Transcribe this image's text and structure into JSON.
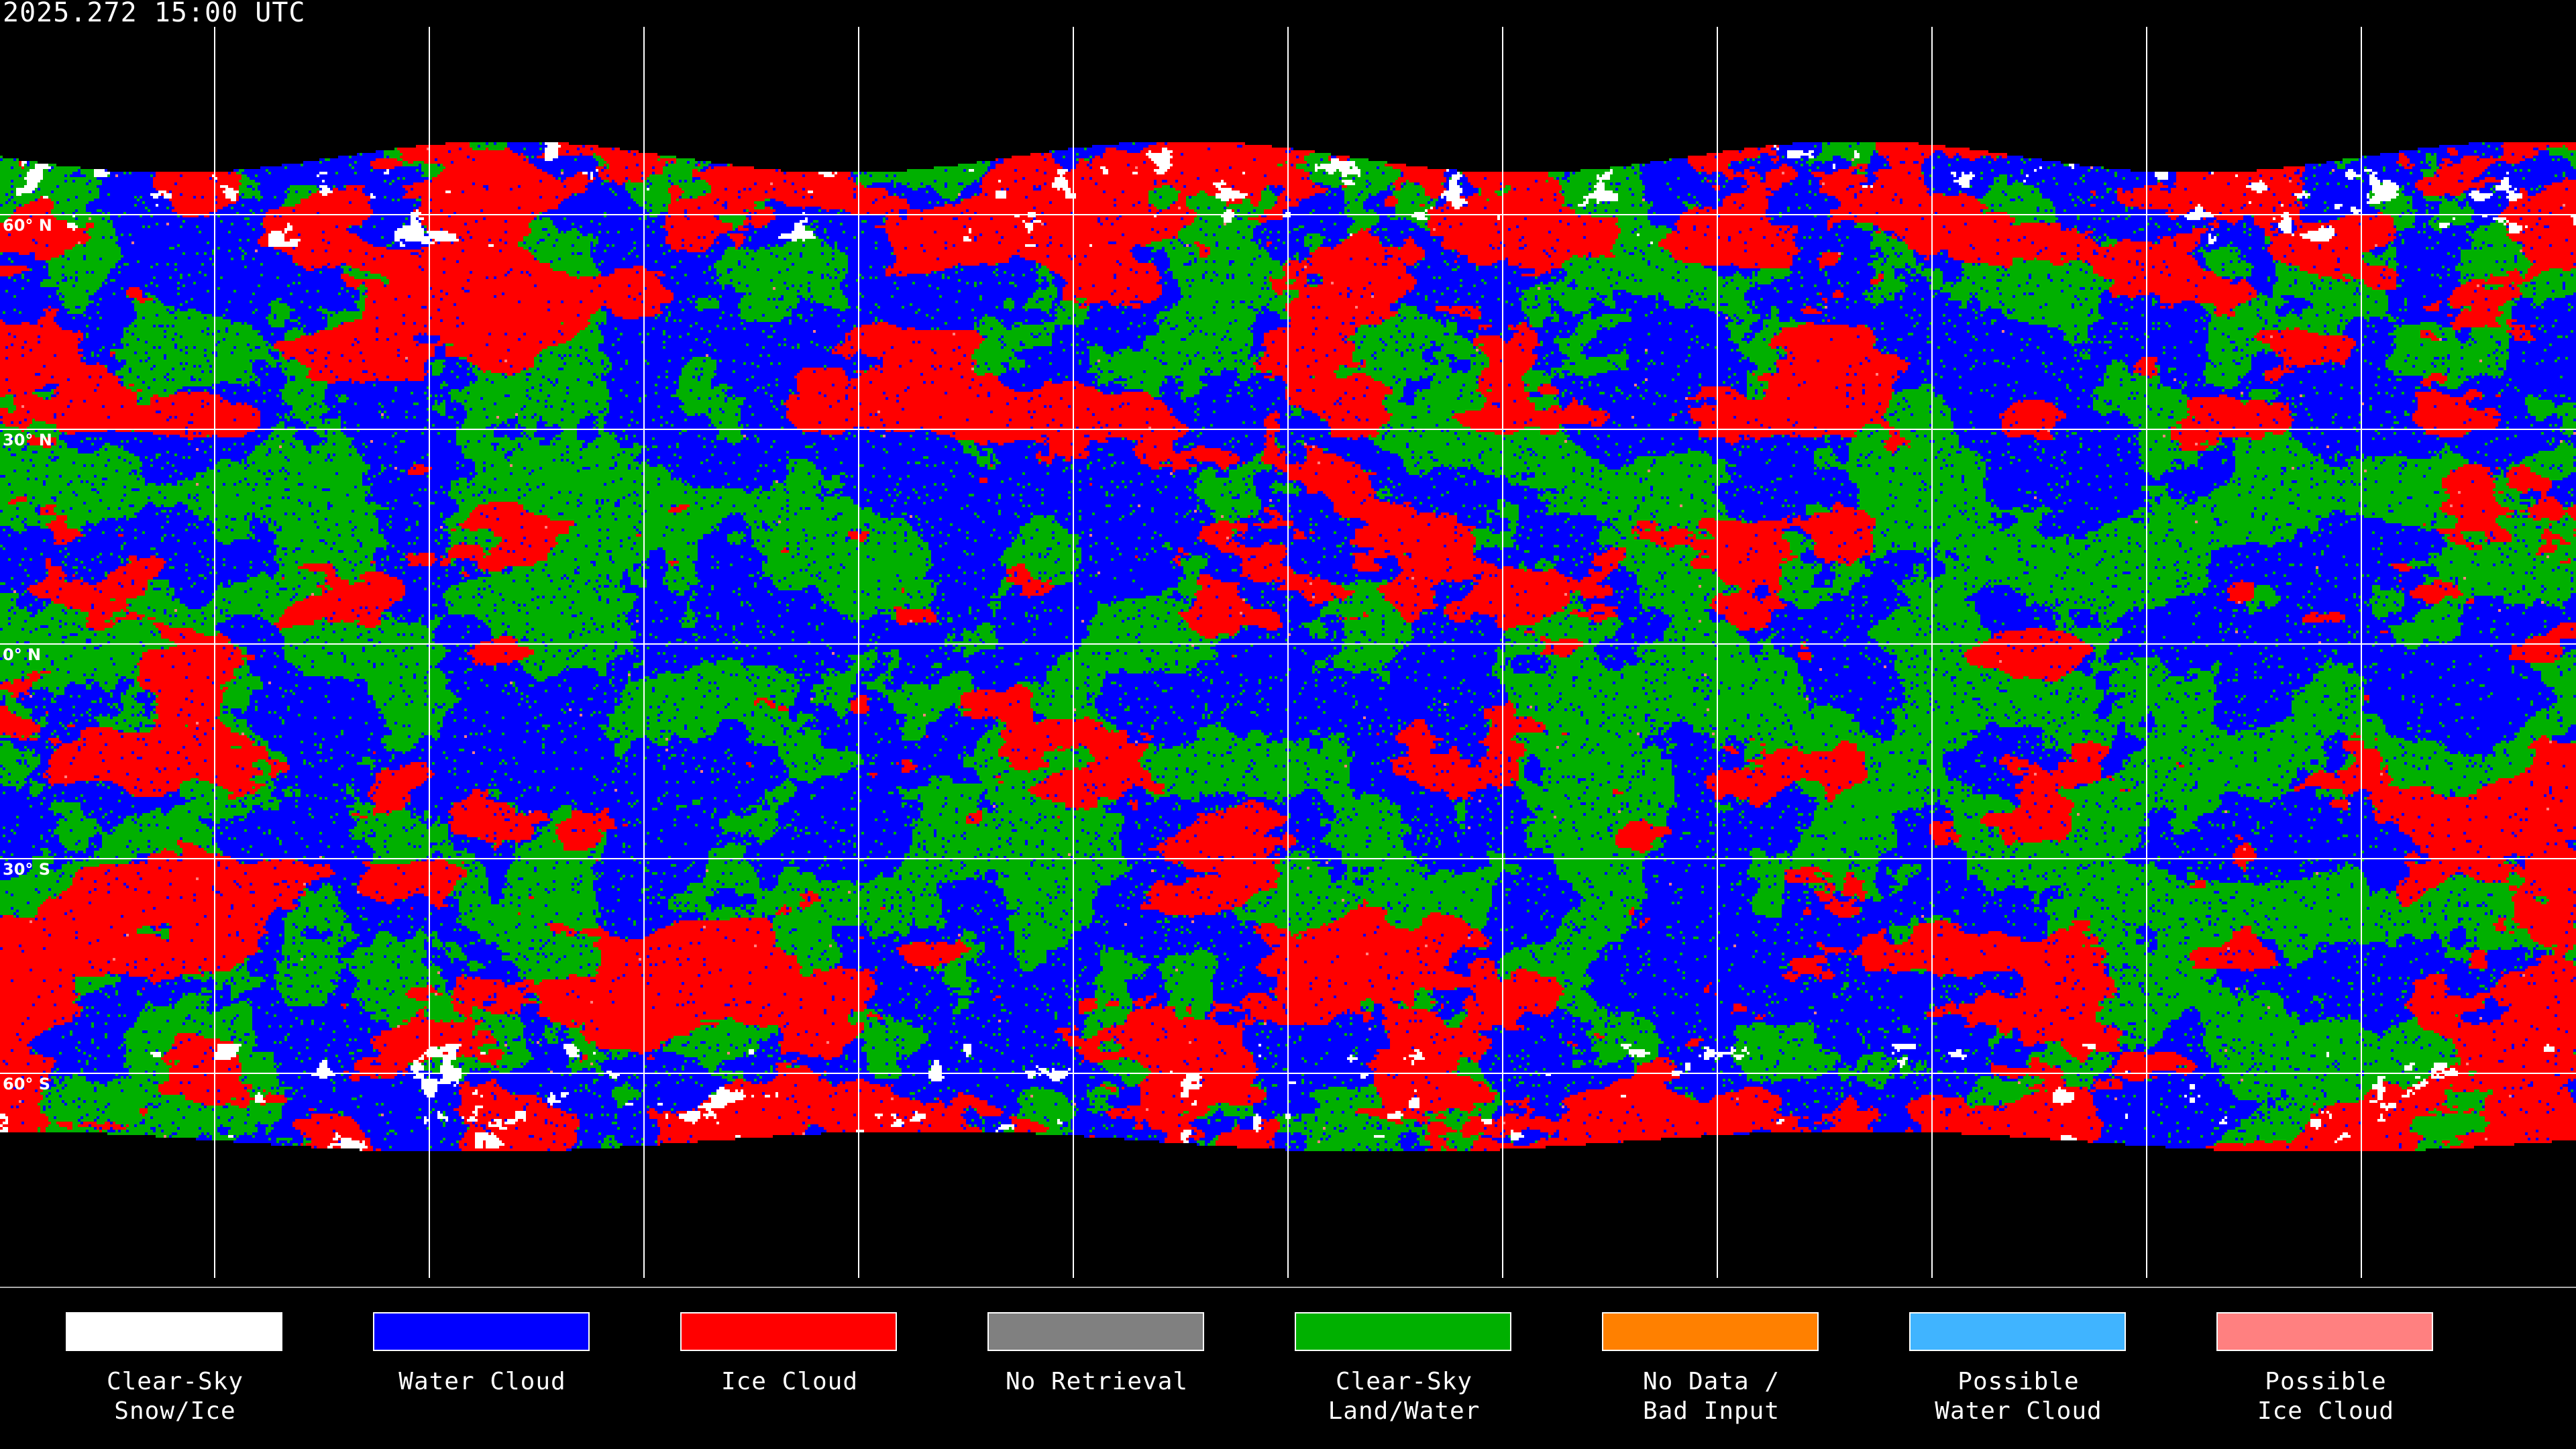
{
  "title": "2025.272 15:00 UTC",
  "latitude_labels": [
    "60° N",
    "30° N",
    "0° N",
    "30° S",
    "60° S"
  ],
  "legend": [
    {
      "line1": "Clear-Sky",
      "line2": "Snow/Ice",
      "color": "#ffffff"
    },
    {
      "line1": "Water Cloud",
      "line2": "",
      "color": "#0000ff"
    },
    {
      "line1": "Ice Cloud",
      "line2": "",
      "color": "#ff0000"
    },
    {
      "line1": "No Retrieval",
      "line2": "",
      "color": "#808080"
    },
    {
      "line1": "Clear-Sky",
      "line2": "Land/Water",
      "color": "#00b000"
    },
    {
      "line1": "No Data /",
      "line2": "Bad Input",
      "color": "#ff8000"
    },
    {
      "line1": "Possible",
      "line2": "Water Cloud",
      "color": "#40b4ff"
    },
    {
      "line1": "Possible",
      "line2": "Ice Cloud",
      "color": "#ff8080"
    }
  ]
}
